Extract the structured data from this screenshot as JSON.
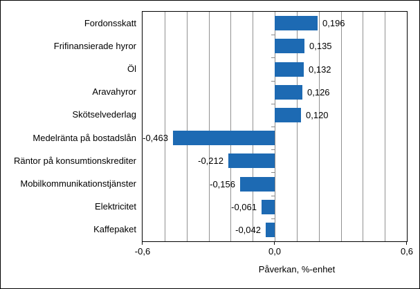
{
  "chart_data": {
    "type": "bar",
    "orientation": "horizontal",
    "title": "",
    "xlabel": "Påverkan, %-enhet",
    "ylabel": "",
    "xlim": [
      -0.6,
      0.6
    ],
    "gridline_step": 0.1,
    "grid_on": true,
    "legend": null,
    "categories": [
      "Fordonsskatt",
      "Frifinansierade hyror",
      "Öl",
      "Aravahyror",
      "Skötselvederlag",
      "Medelränta på bostadslån",
      "Räntor på konsumtionskrediter",
      "Mobilkommunikationstjänster",
      "Elektricitet",
      "Kaffepaket"
    ],
    "values": [
      0.196,
      0.135,
      0.132,
      0.126,
      0.12,
      -0.463,
      -0.212,
      -0.156,
      -0.061,
      -0.042
    ],
    "value_labels": [
      "0,196",
      "0,135",
      "0,132",
      "0,126",
      "0,120",
      "-0,463",
      "-0,212",
      "-0,156",
      "-0,061",
      "-0,042"
    ],
    "x_ticks": [
      -0.6,
      0.0,
      0.6
    ],
    "x_tick_labels": [
      "-0,6",
      "0,0",
      "0,6"
    ],
    "colors": {
      "bar": "#1d6ab3",
      "grid": "#909090",
      "axis": "#000000",
      "background": "#ffffff",
      "text": "#000000"
    }
  }
}
